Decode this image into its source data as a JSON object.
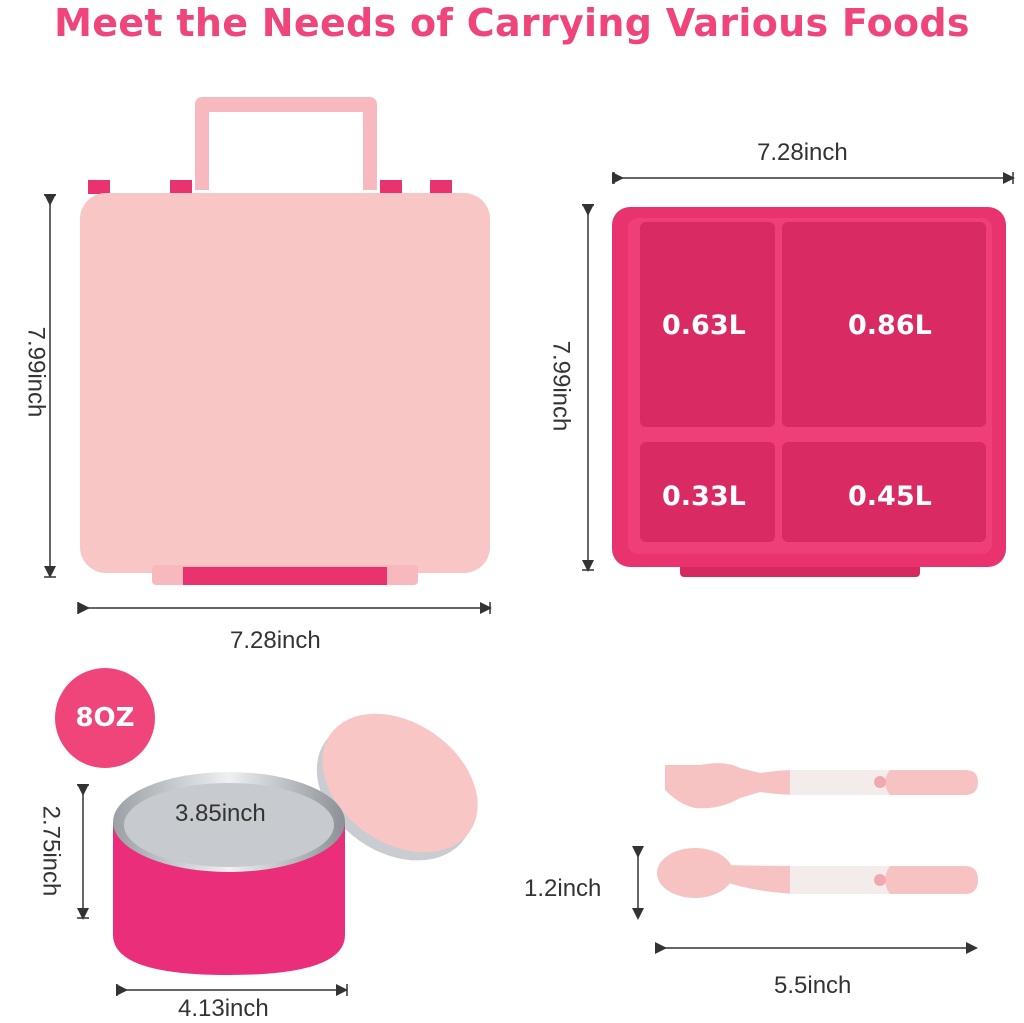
{
  "title": "Meet the Needs of Carrying Various Foods",
  "lunchbox": {
    "height_label": "7.99inch",
    "width_label": "7.28inch"
  },
  "tray": {
    "width_label": "7.28inch",
    "height_label": "7.99inch",
    "compartments": [
      "0.63L",
      "0.86L",
      "0.33L",
      "0.45L"
    ]
  },
  "food_jar": {
    "capacity_badge": "8OZ",
    "height_label": "2.75inch",
    "inner_diameter_label": "3.85inch",
    "outer_diameter_label": "4.13inch"
  },
  "utensils": {
    "height_label": "1.2inch",
    "length_label": "5.5inch"
  },
  "colors": {
    "accent": "#f0457a",
    "lid": "#f9c6c6",
    "tray": "#e8336e"
  }
}
